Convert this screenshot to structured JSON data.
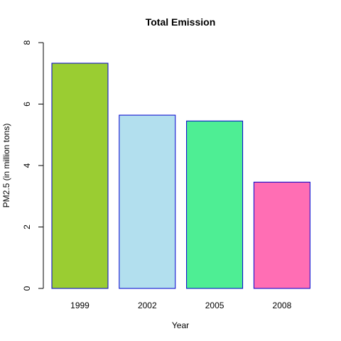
{
  "chart_data": {
    "type": "bar",
    "title": "Total Emission",
    "xlabel": "Year",
    "ylabel": "PM2.5 (in million tons)",
    "categories": [
      "1999",
      "2002",
      "2005",
      "2008"
    ],
    "values": [
      7.33,
      5.64,
      5.45,
      3.46
    ],
    "bar_colors": [
      "#9ACD32",
      "#B2DFEE",
      "#4EEE94",
      "#FF6EB4"
    ],
    "bar_border_color": "#0000CD",
    "ylim": [
      0,
      8
    ],
    "yticks": [
      "0",
      "2",
      "4",
      "6",
      "8"
    ],
    "grid": false,
    "legend": "none"
  }
}
